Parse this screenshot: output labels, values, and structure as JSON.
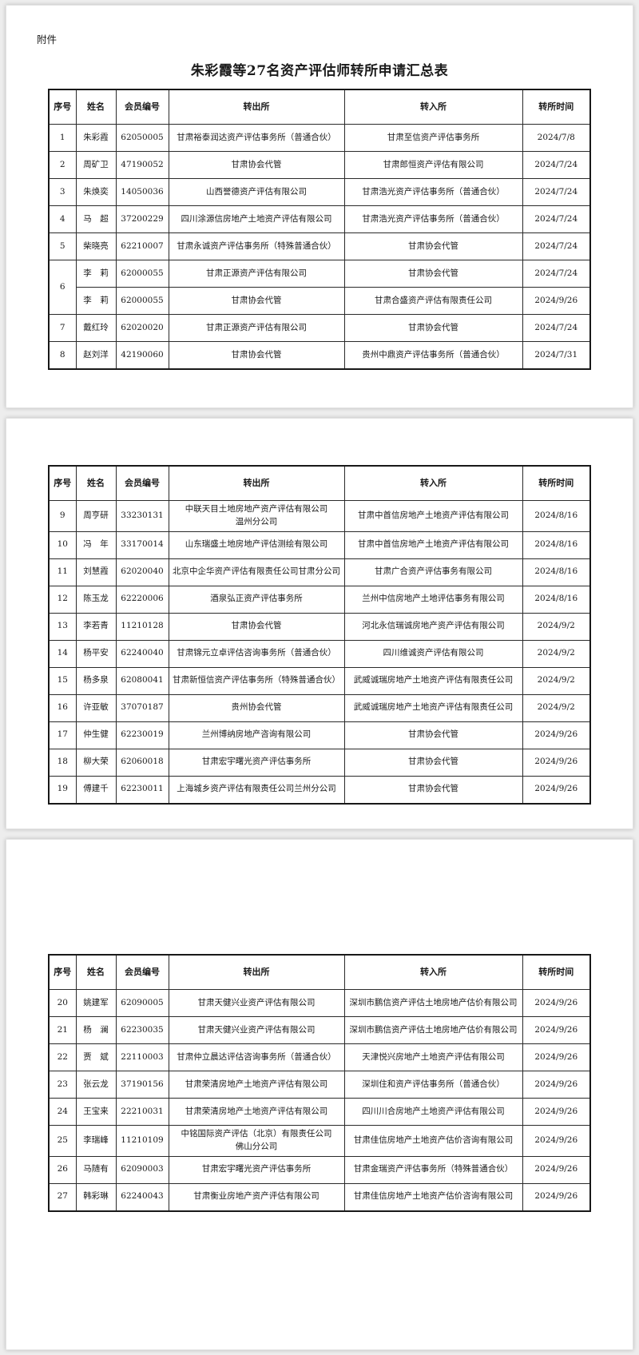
{
  "attachment_label": "附件",
  "title": "朱彩霞等27名资产评估师转所申请汇总表",
  "columns": [
    "序号",
    "姓名",
    "会员编号",
    "转出所",
    "转入所",
    "转所时间"
  ],
  "pages": [
    {
      "rows": [
        {
          "no": "1",
          "name": "朱彩霞",
          "id": "62050005",
          "from": "甘肃裕泰润达资产评估事务所（普通合伙）",
          "to": "甘肃至信资产评估事务所",
          "date": "2024/7/8"
        },
        {
          "no": "2",
          "name": "周矿卫",
          "id": "47190052",
          "from": "甘肃协会代管",
          "to": "甘肃郎恒资产评估有限公司",
          "date": "2024/7/24"
        },
        {
          "no": "3",
          "name": "朱焕奕",
          "id": "14050036",
          "from": "山西誉德资产评估有限公司",
          "to": "甘肃浩光资产评估事务所（普通合伙）",
          "date": "2024/7/24"
        },
        {
          "no": "4",
          "name": "马　超",
          "id": "37200229",
          "from": "四川涂源信房地产土地资产评估有限公司",
          "to": "甘肃浩光资产评估事务所（普通合伙）",
          "date": "2024/7/24"
        },
        {
          "no": "5",
          "name": "柴晓亮",
          "id": "62210007",
          "from": "甘肃永诚资产评估事务所（特殊普通合伙）",
          "to": "甘肃协会代管",
          "date": "2024/7/24"
        },
        {
          "no": "6",
          "no_rowspan": 2,
          "name": "李　莉",
          "id": "62000055",
          "from": "甘肃正源资产评估有限公司",
          "to": "甘肃协会代管",
          "date": "2024/7/24"
        },
        {
          "no": null,
          "name": "李　莉",
          "id": "62000055",
          "from": "甘肃协会代管",
          "to": "甘肃合盛资产评估有限责任公司",
          "date": "2024/9/26"
        },
        {
          "no": "7",
          "name": "戴红玲",
          "id": "62020020",
          "from": "甘肃正源资产评估有限公司",
          "to": "甘肃协会代管",
          "date": "2024/7/24"
        },
        {
          "no": "8",
          "name": "赵刘洋",
          "id": "42190060",
          "from": "甘肃协会代管",
          "to": "贵州中鼎资产评估事务所（普通合伙）",
          "date": "2024/7/31"
        }
      ]
    },
    {
      "rows": [
        {
          "no": "9",
          "name": "周亨研",
          "id": "33230131",
          "from": "中联天目土地房地产资产评估有限公司\n温州分公司",
          "to": "甘肃中首信房地产土地资产评估有限公司",
          "date": "2024/8/16"
        },
        {
          "no": "10",
          "name": "冯　年",
          "id": "33170014",
          "from": "山东瑞盛土地房地产评估测绘有限公司",
          "to": "甘肃中首信房地产土地资产评估有限公司",
          "date": "2024/8/16"
        },
        {
          "no": "11",
          "name": "刘慧霞",
          "id": "62020040",
          "from": "北京中企华资产评估有限责任公司甘肃分公司",
          "to": "甘肃广合资产评估事务有限公司",
          "date": "2024/8/16"
        },
        {
          "no": "12",
          "name": "陈玉龙",
          "id": "62220006",
          "from": "酒泉弘正资产评估事务所",
          "to": "兰州中信房地产土地评估事务有限公司",
          "date": "2024/8/16"
        },
        {
          "no": "13",
          "name": "李若青",
          "id": "11210128",
          "from": "甘肃协会代管",
          "to": "河北永信瑞诚房地产资产评估有限公司",
          "date": "2024/9/2"
        },
        {
          "no": "14",
          "name": "杨平安",
          "id": "62240040",
          "from": "甘肃锦元立卓评估咨询事务所（普通合伙）",
          "to": "四川维诚资产评估有限公司",
          "date": "2024/9/2"
        },
        {
          "no": "15",
          "name": "杨多泉",
          "id": "62080041",
          "from": "甘肃新恒信资产评估事务所（特殊普通合伙）",
          "to": "武威诚瑞房地产土地资产评估有限责任公司",
          "date": "2024/9/2"
        },
        {
          "no": "16",
          "name": "许亚敏",
          "id": "37070187",
          "from": "贵州协会代管",
          "to": "武威诚瑞房地产土地资产评估有限责任公司",
          "date": "2024/9/2"
        },
        {
          "no": "17",
          "name": "仲生健",
          "id": "62230019",
          "from": "兰州博纳房地产咨询有限公司",
          "to": "甘肃协会代管",
          "date": "2024/9/26"
        },
        {
          "no": "18",
          "name": "柳大荣",
          "id": "62060018",
          "from": "甘肃宏宇曙光资产评估事务所",
          "to": "甘肃协会代管",
          "date": "2024/9/26"
        },
        {
          "no": "19",
          "name": "傅建千",
          "id": "62230011",
          "from": "上海城乡资产评估有限责任公司兰州分公司",
          "to": "甘肃协会代管",
          "date": "2024/9/26"
        }
      ]
    },
    {
      "rows": [
        {
          "no": "20",
          "name": "姚建军",
          "id": "62090005",
          "from": "甘肃天健兴业资产评估有限公司",
          "to": "深圳市鹏信资产评估土地房地产估价有限公司",
          "date": "2024/9/26"
        },
        {
          "no": "21",
          "name": "杨　澜",
          "id": "62230035",
          "from": "甘肃天健兴业资产评估有限公司",
          "to": "深圳市鹏信资产评估土地房地产估价有限公司",
          "date": "2024/9/26"
        },
        {
          "no": "22",
          "name": "贾　斌",
          "id": "22110003",
          "from": "甘肃仲立晨达评估咨询事务所（普通合伙）",
          "to": "天津悦兴房地产土地资产评估有限公司",
          "date": "2024/9/26"
        },
        {
          "no": "23",
          "name": "张云龙",
          "id": "37190156",
          "from": "甘肃荣清房地产土地资产评估有限公司",
          "to": "深圳住和资产评估事务所（普通合伙）",
          "date": "2024/9/26"
        },
        {
          "no": "24",
          "name": "王宝来",
          "id": "22210031",
          "from": "甘肃荣清房地产土地资产评估有限公司",
          "to": "四川川合房地产土地资产评估有限公司",
          "date": "2024/9/26"
        },
        {
          "no": "25",
          "name": "李瑞峰",
          "id": "11210109",
          "from": "中铭国际资产评估（北京）有限责任公司\n佛山分公司",
          "to": "甘肃佳信房地产土地资产估价咨询有限公司",
          "date": "2024/9/26"
        },
        {
          "no": "26",
          "name": "马随有",
          "id": "62090003",
          "from": "甘肃宏宇曙光资产评估事务所",
          "to": "甘肃金瑞资产评估事务所（特殊普通合伙）",
          "date": "2024/9/26"
        },
        {
          "no": "27",
          "name": "韩彩琳",
          "id": "62240043",
          "from": "甘肃衡业房地产资产评估有限公司",
          "to": "甘肃佳信房地产土地资产估价咨询有限公司",
          "date": "2024/9/26"
        }
      ]
    }
  ]
}
